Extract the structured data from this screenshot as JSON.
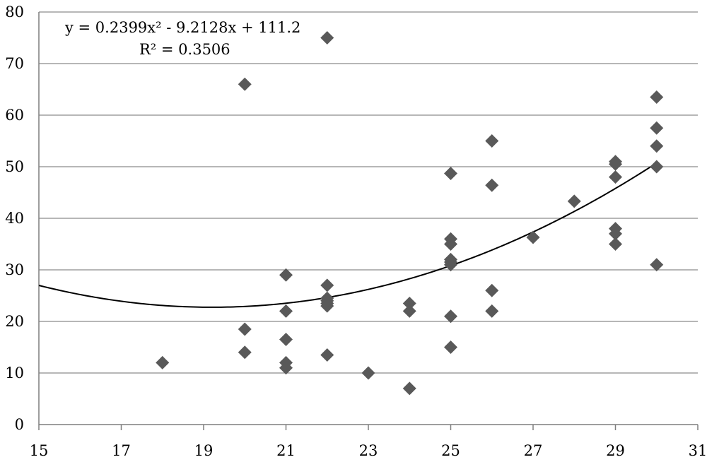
{
  "chart_data": {
    "type": "scatter",
    "title": "",
    "xlabel": "",
    "ylabel": "",
    "xlim": [
      15,
      31
    ],
    "ylim": [
      0,
      80
    ],
    "xticks": [
      15,
      17,
      19,
      21,
      23,
      25,
      27,
      29,
      31
    ],
    "yticks": [
      0,
      10,
      20,
      30,
      40,
      50,
      60,
      70,
      80
    ],
    "grid": "horizontal",
    "marker_color": "#595959",
    "series": [
      {
        "x": [
          18,
          20,
          20,
          20,
          21,
          21,
          21,
          21,
          21,
          22,
          22,
          22,
          22,
          22,
          22,
          22,
          23,
          24,
          24,
          24,
          25,
          25,
          25,
          25,
          25,
          25,
          25,
          25,
          26,
          26,
          26,
          26,
          27,
          28,
          29,
          29,
          29,
          29,
          29,
          29,
          30,
          30,
          30,
          30,
          30
        ],
        "y": [
          12,
          66,
          18.5,
          14,
          29,
          22,
          16.5,
          12,
          11,
          75,
          27,
          24.5,
          23.5,
          23,
          13.5,
          24,
          10,
          23.5,
          22,
          7,
          48.7,
          36,
          35,
          32,
          31,
          21,
          15,
          31.5,
          55,
          46.4,
          26,
          22,
          36.3,
          43.3,
          51,
          50.5,
          48,
          38,
          37,
          35,
          63.5,
          57.5,
          54,
          50,
          31
        ]
      }
    ],
    "trendline": {
      "type": "polynomial",
      "coefficients": {
        "a": 0.2399,
        "b": -9.2128,
        "c": 111.2
      },
      "x_range": [
        15,
        30
      ]
    },
    "annotations": {
      "equation": "y = 0.2399x² - 9.2128x + 111.2",
      "r_squared": "R² = 0.3506"
    }
  }
}
